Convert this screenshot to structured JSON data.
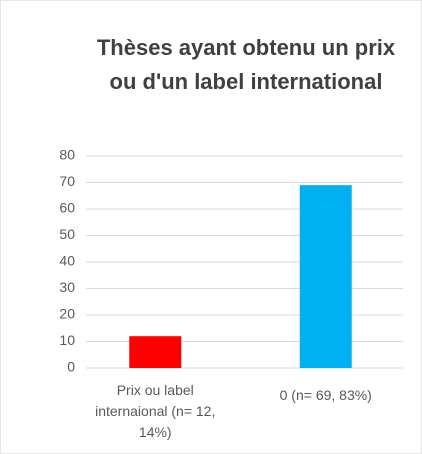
{
  "chart_data": {
    "type": "bar",
    "title": "Thèses ayant obtenu un prix ou d'un label international",
    "categories": [
      "Prix ou label internaional (n= 12, 14%)",
      "0  (n= 69, 83%)"
    ],
    "values": [
      12,
      69
    ],
    "colors": [
      "#ff0000",
      "#00b0f0"
    ],
    "ylim": [
      0,
      80
    ],
    "yticks": [
      0,
      10,
      20,
      30,
      40,
      50,
      60,
      70,
      80
    ],
    "grid": true
  }
}
